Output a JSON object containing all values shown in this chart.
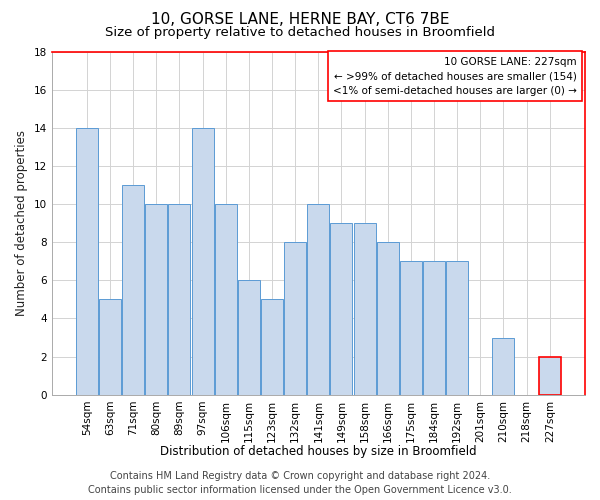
{
  "title": "10, GORSE LANE, HERNE BAY, CT6 7BE",
  "subtitle": "Size of property relative to detached houses in Broomfield",
  "xlabel": "Distribution of detached houses by size in Broomfield",
  "ylabel": "Number of detached properties",
  "categories": [
    "54sqm",
    "63sqm",
    "71sqm",
    "80sqm",
    "89sqm",
    "97sqm",
    "106sqm",
    "115sqm",
    "123sqm",
    "132sqm",
    "141sqm",
    "149sqm",
    "158sqm",
    "166sqm",
    "175sqm",
    "184sqm",
    "192sqm",
    "201sqm",
    "210sqm",
    "218sqm",
    "227sqm"
  ],
  "values": [
    14,
    5,
    11,
    10,
    10,
    14,
    10,
    6,
    5,
    8,
    10,
    9,
    9,
    8,
    7,
    7,
    7,
    0,
    3,
    0,
    2
  ],
  "bar_color": "#c9d9ed",
  "bar_edge_color": "#5b9bd5",
  "highlight_bar_index": 20,
  "highlight_edge_color": "#ff0000",
  "ylim": [
    0,
    18
  ],
  "yticks": [
    0,
    2,
    4,
    6,
    8,
    10,
    12,
    14,
    16,
    18
  ],
  "grid_color": "#d3d3d3",
  "background_color": "#ffffff",
  "legend_title": "10 GORSE LANE: 227sqm",
  "legend_line1": "← >99% of detached houses are smaller (154)",
  "legend_line2": "<1% of semi-detached houses are larger (0) →",
  "legend_box_color": "#ffffff",
  "legend_box_edge_color": "#ff0000",
  "footer_line1": "Contains HM Land Registry data © Crown copyright and database right 2024.",
  "footer_line2": "Contains public sector information licensed under the Open Government Licence v3.0.",
  "title_fontsize": 11,
  "subtitle_fontsize": 9.5,
  "axis_label_fontsize": 8.5,
  "tick_fontsize": 7.5,
  "legend_fontsize": 7.5,
  "footer_fontsize": 7
}
